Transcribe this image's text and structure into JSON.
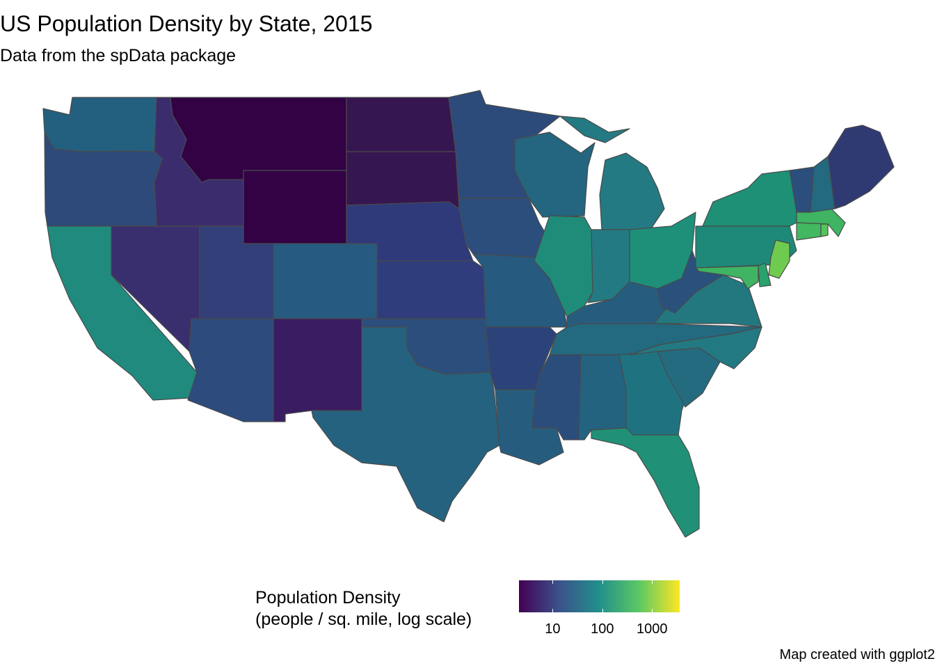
{
  "title": "US Population Density by State, 2015",
  "subtitle": "Data from the spData package",
  "caption": "Map created with ggplot2",
  "legend": {
    "title_line1": "Population Density",
    "title_line2": "(people / sq. mile, log scale)",
    "scale": "log",
    "palette": [
      "#440154",
      "#3b528b",
      "#21908c",
      "#5dc863",
      "#fde725"
    ],
    "ticks": [
      {
        "value": 10,
        "label": "10"
      },
      {
        "value": 100,
        "label": "100"
      },
      {
        "value": 1000,
        "label": "1000"
      }
    ]
  },
  "map_data": {
    "type": "choropleth",
    "region": "contiguous US states",
    "variable": "population density, 2015",
    "border_color": "#4a4a4a",
    "states": [
      {
        "name": "Washington",
        "color": "#23607f"
      },
      {
        "name": "Oregon",
        "color": "#2e4a7b"
      },
      {
        "name": "California",
        "color": "#208a7e"
      },
      {
        "name": "Nevada",
        "color": "#3a2f6e"
      },
      {
        "name": "Idaho",
        "color": "#3b2d6d"
      },
      {
        "name": "Montana",
        "color": "#320245"
      },
      {
        "name": "Wyoming",
        "color": "#320245"
      },
      {
        "name": "Utah",
        "color": "#323f78"
      },
      {
        "name": "Arizona",
        "color": "#2d4b7d"
      },
      {
        "name": "Colorado",
        "color": "#275a80"
      },
      {
        "name": "New Mexico",
        "color": "#3a1c62"
      },
      {
        "name": "North Dakota",
        "color": "#361650"
      },
      {
        "name": "South Dakota",
        "color": "#361650"
      },
      {
        "name": "Nebraska",
        "color": "#2f3a7b"
      },
      {
        "name": "Kansas",
        "color": "#2f3d7c"
      },
      {
        "name": "Oklahoma",
        "color": "#2b4e7c"
      },
      {
        "name": "Texas",
        "color": "#25627f"
      },
      {
        "name": "Minnesota",
        "color": "#2c4b7a"
      },
      {
        "name": "Iowa",
        "color": "#2b4e7c"
      },
      {
        "name": "Missouri",
        "color": "#265a7f"
      },
      {
        "name": "Arkansas",
        "color": "#2c437a"
      },
      {
        "name": "Louisiana",
        "color": "#265d7f"
      },
      {
        "name": "Wisconsin",
        "color": "#24657f"
      },
      {
        "name": "Illinois",
        "color": "#1f8c7a"
      },
      {
        "name": "Michigan",
        "color": "#237a82"
      },
      {
        "name": "Indiana",
        "color": "#237a82"
      },
      {
        "name": "Ohio",
        "color": "#1e8f79"
      },
      {
        "name": "Kentucky",
        "color": "#265d7f"
      },
      {
        "name": "Tennessee",
        "color": "#23697f"
      },
      {
        "name": "Mississippi",
        "color": "#2b4d7c"
      },
      {
        "name": "Alabama",
        "color": "#246380"
      },
      {
        "name": "Georgia",
        "color": "#1f7380"
      },
      {
        "name": "Florida",
        "color": "#209077"
      },
      {
        "name": "South Carolina",
        "color": "#246b80"
      },
      {
        "name": "North Carolina",
        "color": "#227982"
      },
      {
        "name": "Virginia",
        "color": "#23787f"
      },
      {
        "name": "West Virginia",
        "color": "#2a517c"
      },
      {
        "name": "Pennsylvania",
        "color": "#1e8979"
      },
      {
        "name": "New York",
        "color": "#1e9075"
      },
      {
        "name": "Maryland",
        "color": "#3fb463"
      },
      {
        "name": "Delaware",
        "color": "#28a36c"
      },
      {
        "name": "New Jersey",
        "color": "#6fcb4f"
      },
      {
        "name": "Connecticut",
        "color": "#41b861"
      },
      {
        "name": "Rhode Island",
        "color": "#56c45a"
      },
      {
        "name": "Massachusetts",
        "color": "#3fb463"
      },
      {
        "name": "Vermont",
        "color": "#2b4e7c"
      },
      {
        "name": "New Hampshire",
        "color": "#23697f"
      },
      {
        "name": "Maine",
        "color": "#2f3a72"
      }
    ]
  }
}
